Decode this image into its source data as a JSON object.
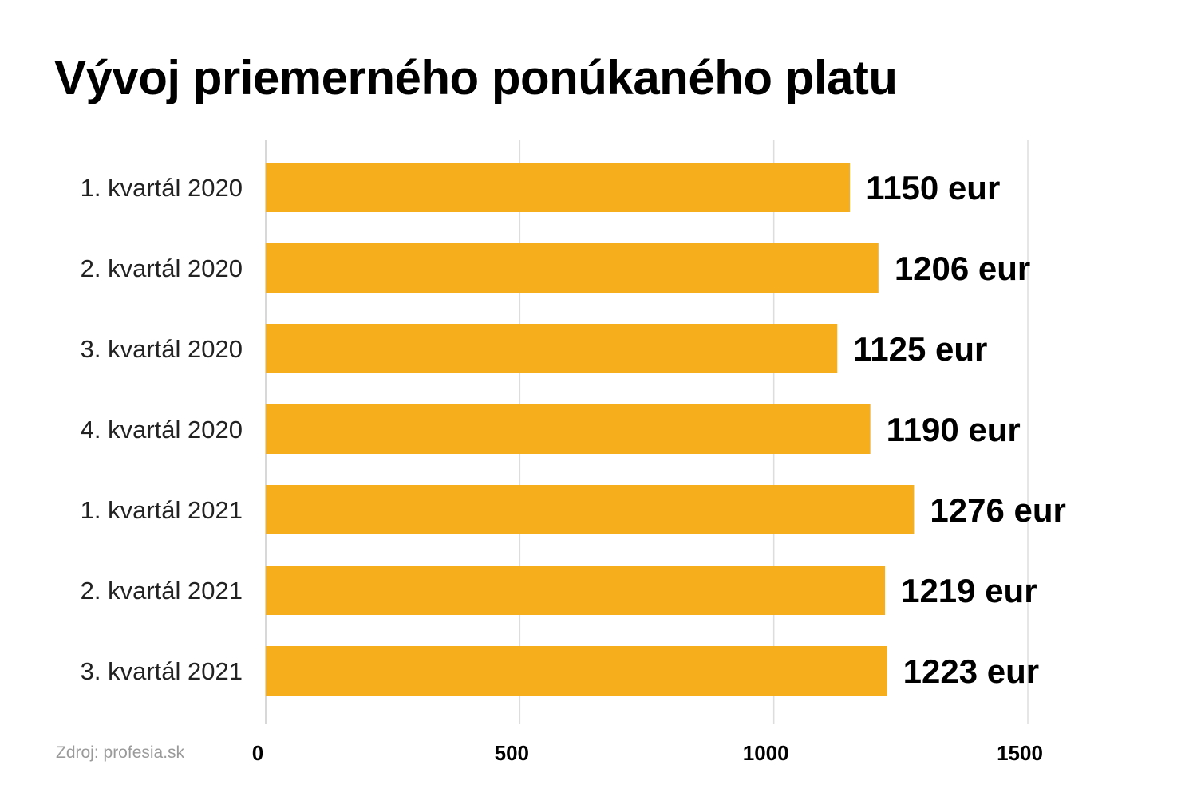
{
  "source": "Zdroj: profesia.sk",
  "colors": {
    "bar": "#F7AE1C",
    "grid": "#dddddd",
    "axis": "#cccccc"
  },
  "chart_data": {
    "type": "bar",
    "orientation": "horizontal",
    "title": "Vývoj priemerného ponúkaného platu",
    "categories": [
      "1. kvartál 2020",
      "2. kvartál 2020",
      "3. kvartál 2020",
      "4. kvartál 2020",
      "1. kvartál 2021",
      "2. kvartál 2021",
      "3. kvartál 2021"
    ],
    "values": [
      1150,
      1206,
      1125,
      1190,
      1276,
      1219,
      1223
    ],
    "value_labels": [
      "1150 eur",
      "1206 eur",
      "1125 eur",
      "1190 eur",
      "1276 eur",
      "1219 eur",
      "1223 eur"
    ],
    "xticks": [
      "0",
      "500",
      "1000",
      "1500"
    ],
    "xlim": [
      0,
      1500
    ],
    "xlabel": "",
    "ylabel": "",
    "grid": true,
    "legend": "none"
  }
}
